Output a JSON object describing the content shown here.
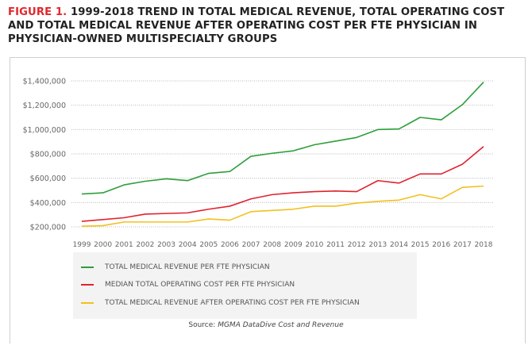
{
  "title": {
    "prefix": "FIGURE 1.",
    "text": " 1999-2018 TREND IN TOTAL MEDICAL REVENUE, TOTAL OPERATING COST AND TOTAL MEDICAL REVENUE AFTER OPERATING COST PER FTE PHYSICIAN IN PHYSICIAN-OWNED MULTISPECIALTY GROUPS"
  },
  "source": {
    "label": "Source: ",
    "text": "MGMA DataDive Cost and Revenue"
  },
  "chart_data": {
    "type": "line",
    "x": [
      1999,
      2000,
      2001,
      2002,
      2003,
      2004,
      2005,
      2006,
      2007,
      2008,
      2009,
      2010,
      2011,
      2012,
      2013,
      2014,
      2015,
      2016,
      2017,
      2018
    ],
    "ylim": [
      200000,
      1400000
    ],
    "yticks": [
      "$200,000",
      "$400,000",
      "$600,000",
      "$800,000",
      "$1,000,000",
      "$1,200,000",
      "$1,400,000"
    ],
    "ytick_values": [
      200000,
      400000,
      600000,
      800000,
      1000000,
      1200000,
      1400000
    ],
    "grid": "horizontal dotted",
    "legend_placement": "bottom",
    "series": [
      {
        "name": "TOTAL MEDICAL REVENUE PER FTE PHYSICIAN",
        "color": "#2e9e3a",
        "values": [
          470000,
          480000,
          545000,
          575000,
          595000,
          580000,
          640000,
          655000,
          780000,
          805000,
          825000,
          875000,
          905000,
          935000,
          1000000,
          1005000,
          1100000,
          1080000,
          1205000,
          1390000
        ]
      },
      {
        "name": "MEDIAN TOTAL OPERATING COST PER FTE PHYSICIAN",
        "color": "#e0222e",
        "values": [
          245000,
          260000,
          275000,
          305000,
          310000,
          315000,
          345000,
          370000,
          430000,
          465000,
          480000,
          490000,
          495000,
          490000,
          580000,
          560000,
          635000,
          635000,
          715000,
          860000
        ]
      },
      {
        "name": "TOTAL MEDICAL REVENUE AFTER OPERATING COST PER FTE PHYSICIAN",
        "color": "#f2c01e",
        "values": [
          205000,
          210000,
          240000,
          240000,
          240000,
          240000,
          265000,
          255000,
          325000,
          335000,
          345000,
          370000,
          370000,
          395000,
          410000,
          420000,
          465000,
          430000,
          525000,
          535000
        ]
      }
    ]
  }
}
